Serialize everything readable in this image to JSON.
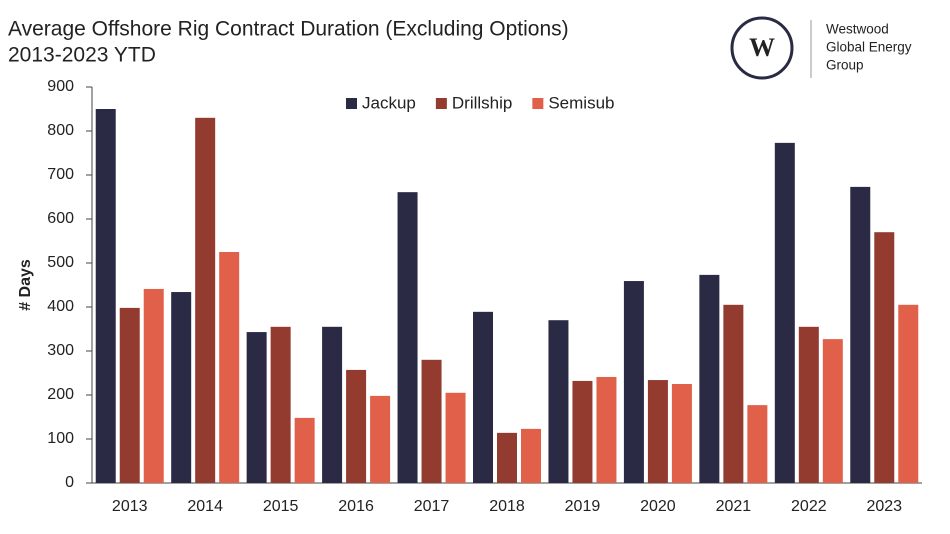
{
  "chart_data": {
    "type": "bar",
    "title": "Average Offshore Rig Contract Duration (Excluding Options)",
    "subtitle": "2013-2023 YTD",
    "logo_text": [
      "Westwood",
      "Global Energy",
      "Group"
    ],
    "y_label": "# Days",
    "categories": [
      "2013",
      "2014",
      "2015",
      "2016",
      "2017",
      "2018",
      "2019",
      "2020",
      "2021",
      "2022",
      "2023"
    ],
    "series": [
      {
        "name": "Jackup",
        "color": "#2a2a45",
        "values": [
          850,
          434,
          343,
          355,
          661,
          389,
          370,
          459,
          473,
          773,
          673
        ]
      },
      {
        "name": "Drillship",
        "color": "#943b30",
        "values": [
          398,
          830,
          355,
          257,
          280,
          114,
          232,
          234,
          405,
          355,
          570
        ]
      },
      {
        "name": "Semisub",
        "color": "#e0604a",
        "values": [
          441,
          525,
          148,
          198,
          205,
          123,
          241,
          225,
          177,
          327,
          405
        ]
      }
    ],
    "ylim": [
      0,
      900
    ],
    "yticks": [
      0,
      100,
      200,
      300,
      400,
      500,
      600,
      700,
      800,
      900
    ],
    "grid": false,
    "legend": "top"
  }
}
